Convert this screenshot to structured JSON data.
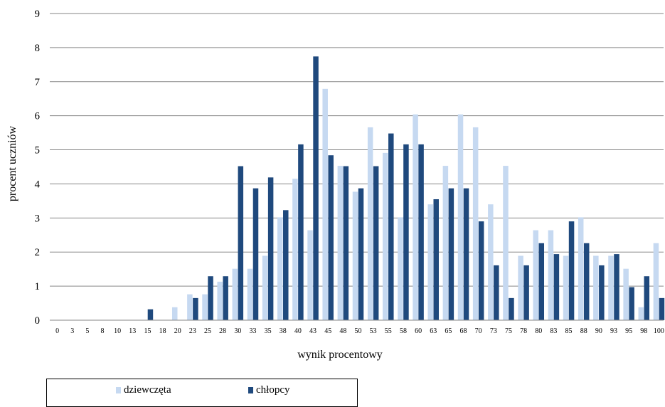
{
  "chart_data": {
    "type": "bar",
    "xlabel": "wynik procentowy",
    "ylabel": "procent uczniów",
    "ylim": [
      0,
      9
    ],
    "yticks": [
      "0",
      "1",
      "2",
      "3",
      "4",
      "5",
      "6",
      "7",
      "8",
      "9"
    ],
    "grid": true,
    "legend_position": "bottom",
    "categories": [
      "0",
      "3",
      "5",
      "8",
      "10",
      "13",
      "15",
      "18",
      "20",
      "23",
      "25",
      "28",
      "30",
      "33",
      "35",
      "38",
      "40",
      "43",
      "45",
      "48",
      "50",
      "53",
      "55",
      "58",
      "60",
      "63",
      "65",
      "68",
      "70",
      "73",
      "75",
      "78",
      "80",
      "83",
      "85",
      "88",
      "90",
      "93",
      "95",
      "98",
      "100"
    ],
    "series": [
      {
        "name": "dziewczęta",
        "color": "#c6d9f1",
        "values": [
          0,
          0,
          0,
          0,
          0,
          0,
          0,
          0,
          0.38,
          0.76,
          0.76,
          1.13,
          1.51,
          1.51,
          1.89,
          3.02,
          4.15,
          2.64,
          6.79,
          4.53,
          3.77,
          5.66,
          4.91,
          3.02,
          6.04,
          3.4,
          4.53,
          6.04,
          5.66,
          3.4,
          4.53,
          1.89,
          2.64,
          2.64,
          1.89,
          3.02,
          1.89,
          1.89,
          1.51,
          0.38,
          2.26
        ]
      },
      {
        "name": "chłopcy",
        "color": "#1f497d",
        "values": [
          0,
          0,
          0,
          0,
          0,
          0,
          0.32,
          0,
          0,
          0.65,
          1.29,
          1.29,
          4.52,
          3.87,
          4.19,
          3.23,
          5.16,
          7.74,
          4.84,
          4.52,
          3.87,
          4.52,
          5.48,
          5.16,
          5.16,
          3.55,
          3.87,
          3.87,
          2.9,
          1.61,
          0.65,
          1.61,
          2.26,
          1.94,
          2.9,
          2.26,
          1.61,
          1.94,
          0.97,
          1.29,
          0.65
        ]
      }
    ]
  }
}
